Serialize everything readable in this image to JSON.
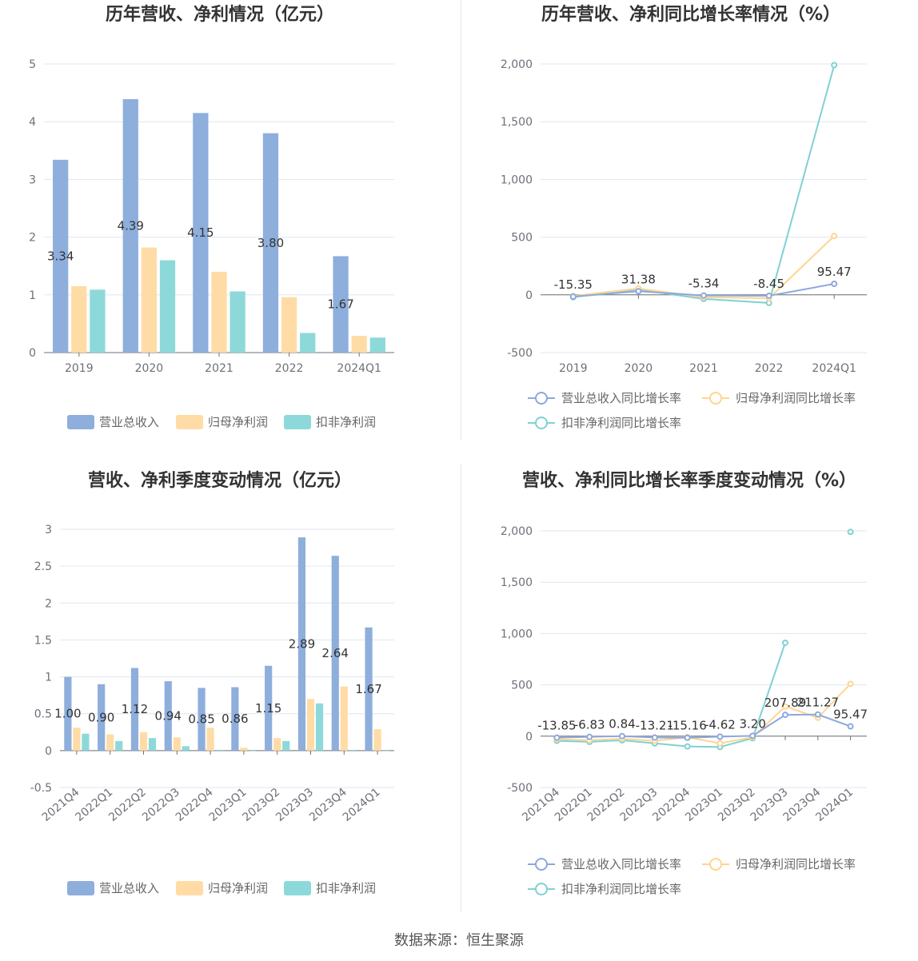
{
  "colors": {
    "revenue": "#8eaedc",
    "net_profit": "#ffdca6",
    "deducted_profit": "#8dd9d9",
    "revenue_line": "#8ea8dc",
    "net_profit_line": "#ffd591",
    "deducted_profit_line": "#7fd1d3"
  },
  "source_text": "数据来源：恒生聚源",
  "chart_data": [
    {
      "type": "bar",
      "title": "历年营收、净利情况（亿元）",
      "categories": [
        "2019",
        "2020",
        "2021",
        "2022",
        "2024Q1"
      ],
      "yticks": [
        "0",
        "1",
        "2",
        "3",
        "4",
        "5"
      ],
      "ylim": [
        0,
        5
      ],
      "series": [
        {
          "name": "营业总收入",
          "values": [
            3.34,
            4.39,
            4.15,
            3.8,
            1.67
          ],
          "labels": [
            "3.34",
            "4.39",
            "4.15",
            "3.80",
            "1.67"
          ]
        },
        {
          "name": "归母净利润",
          "values": [
            1.15,
            1.82,
            1.4,
            0.96,
            0.29
          ]
        },
        {
          "name": "扣非净利润",
          "values": [
            1.09,
            1.6,
            1.06,
            0.34,
            0.26
          ]
        }
      ],
      "legend_position": "bottom",
      "grid": true
    },
    {
      "type": "line",
      "title": "历年营收、净利同比增长率情况（%）",
      "categories": [
        "2019",
        "2020",
        "2021",
        "2022",
        "2024Q1"
      ],
      "yticks": [
        "-500",
        "0",
        "500",
        "1,000",
        "1,500",
        "2,000"
      ],
      "ylim": [
        -500,
        2000
      ],
      "series": [
        {
          "name": "营业总收入同比增长率",
          "values": [
            -15.35,
            31.38,
            -5.34,
            -8.45,
            95.47
          ],
          "labels": [
            "-15.35",
            "31.38",
            "-5.34",
            "-8.45",
            "95.47"
          ]
        },
        {
          "name": "归母净利润同比增长率",
          "values": [
            -10,
            55,
            -20,
            -30,
            510
          ]
        },
        {
          "name": "扣非净利润同比增长率",
          "values": [
            -20,
            45,
            -35,
            -70,
            1990
          ]
        }
      ],
      "legend_position": "bottom",
      "grid": true
    },
    {
      "type": "bar",
      "title": "营收、净利季度变动情况（亿元）",
      "categories": [
        "2021Q4",
        "2022Q1",
        "2022Q2",
        "2022Q3",
        "2022Q4",
        "2023Q1",
        "2023Q2",
        "2023Q3",
        "2023Q4",
        "2024Q1"
      ],
      "yticks": [
        "-0.5",
        "0",
        "0.5",
        "1",
        "1.5",
        "2",
        "2.5",
        "3"
      ],
      "ylim": [
        -0.5,
        3
      ],
      "series": [
        {
          "name": "营业总收入",
          "values": [
            1.0,
            0.9,
            1.12,
            0.94,
            0.85,
            0.86,
            1.15,
            2.89,
            2.64,
            1.67
          ],
          "labels": [
            "1.00",
            "0.90",
            "1.12",
            "0.94",
            "0.85",
            "0.86",
            "1.15",
            "2.89",
            "2.64",
            "1.67"
          ]
        },
        {
          "name": "归母净利润",
          "values": [
            0.31,
            0.22,
            0.25,
            0.18,
            0.31,
            0.04,
            0.17,
            0.7,
            0.87,
            0.29
          ]
        },
        {
          "name": "扣非净利润",
          "values": [
            0.23,
            0.13,
            0.17,
            0.06,
            0.01,
            0.0,
            0.13,
            0.64,
            0.01,
            0.0
          ]
        }
      ],
      "legend_position": "bottom",
      "grid": true
    },
    {
      "type": "line",
      "title": "营收、净利同比增长率季度变动情况（%）",
      "categories": [
        "2021Q4",
        "2022Q1",
        "2022Q2",
        "2022Q3",
        "2022Q4",
        "2023Q1",
        "2023Q2",
        "2023Q3",
        "2023Q4",
        "2024Q1"
      ],
      "yticks": [
        "-500",
        "0",
        "500",
        "1,000",
        "1,500",
        "2,000"
      ],
      "ylim": [
        -500,
        2000
      ],
      "series": [
        {
          "name": "营业总收入同比增长率",
          "values": [
            -13.85,
            -6.83,
            0.84,
            -13.21,
            -15.16,
            -4.62,
            3.2,
            207.89,
            211.27,
            95.47
          ],
          "labels": [
            "-13.85",
            "-6.83",
            "0.84",
            "-13.21",
            "-15.16",
            "-4.62",
            "3.20",
            "207.89",
            "211.27",
            "95.47"
          ]
        },
        {
          "name": "归母净利润同比增长率",
          "values": [
            -30,
            -40,
            -25,
            -45,
            -10,
            -70,
            -10,
            290,
            180,
            510
          ]
        },
        {
          "name": "扣非净利润同比增长率",
          "values": [
            -45,
            -55,
            -40,
            -70,
            -100,
            -105,
            -20,
            910,
            null,
            1990
          ]
        }
      ],
      "legend_position": "bottom",
      "grid": true
    }
  ]
}
